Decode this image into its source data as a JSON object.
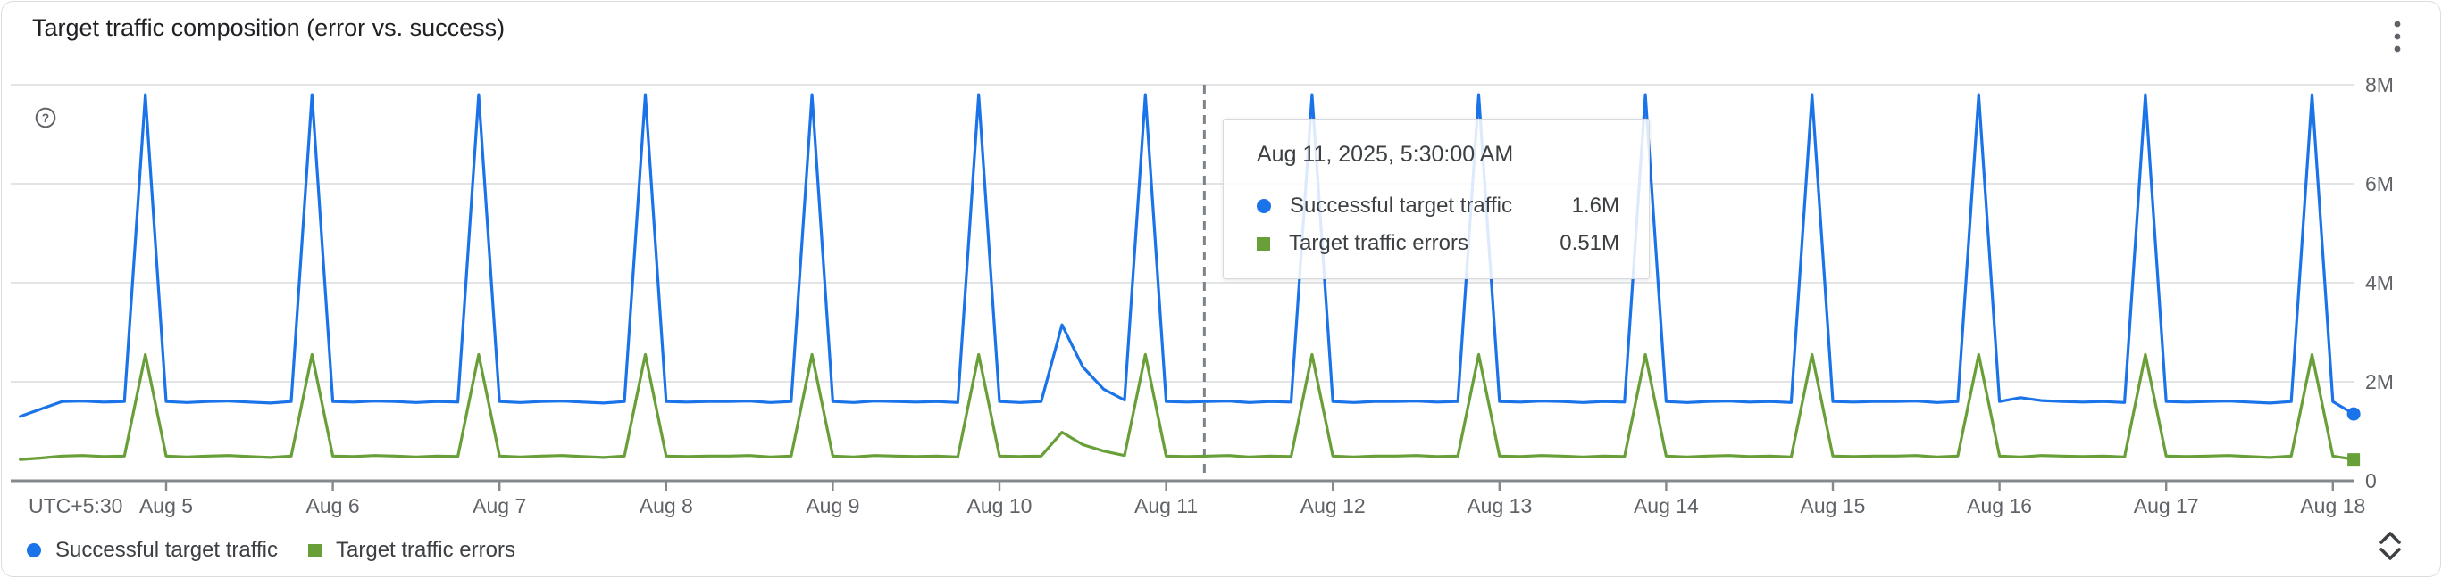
{
  "card": {
    "title": "Target traffic composition (error vs. success)"
  },
  "icons": {
    "menu": "kebab-vertical-icon",
    "help": "help-circle-icon",
    "expand": "unfold-more-icon"
  },
  "colors": {
    "success_series": "#1a73e8",
    "error_series": "#689f38",
    "grid": "#e4e4e6",
    "axis": "#85898e",
    "dashed_marker": "#7d838a",
    "axis_text": "#5f6368",
    "title_text": "#202124",
    "body_text": "#3c4043"
  },
  "tooltip": {
    "date": "Aug 11, 2025, 5:30:00 AM",
    "rows": [
      {
        "label": "Successful target traffic",
        "value": "1.6M",
        "marker": "circle"
      },
      {
        "label": "Target traffic errors",
        "value": "0.51M",
        "marker": "square"
      }
    ]
  },
  "legend": {
    "items": [
      {
        "label": "Successful target traffic",
        "marker": "circle"
      },
      {
        "label": "Target traffic errors",
        "marker": "square"
      }
    ]
  },
  "chart_data": {
    "type": "line",
    "title": "Target traffic composition (error vs. success)",
    "timezone_label": "UTC+5:30",
    "x_unit": "hours since Aug 4, 2025 00:00 (UTC+5:30)",
    "x_start_hour": 3,
    "x_step_hours": 3,
    "x_tick_hours": [
      24,
      48,
      72,
      96,
      120,
      144,
      168,
      192,
      216,
      240,
      264,
      288,
      312,
      336
    ],
    "x_tick_labels": [
      "Aug 5",
      "Aug 6",
      "Aug 7",
      "Aug 8",
      "Aug 9",
      "Aug 10",
      "Aug 11",
      "Aug 12",
      "Aug 13",
      "Aug 14",
      "Aug 15",
      "Aug 16",
      "Aug 17",
      "Aug 18"
    ],
    "y_ticks_millions": [
      0,
      2,
      4,
      6,
      8
    ],
    "y_tick_labels": [
      "0",
      "2M",
      "4M",
      "6M",
      "8M"
    ],
    "ylim_millions": [
      0,
      8
    ],
    "grid": true,
    "legend_position": "bottom",
    "selected_point": {
      "hour": 173.5,
      "date": "Aug 11, 2025, 5:30:00 AM",
      "success_millions": 1.6,
      "errors_millions": 0.51
    },
    "series": [
      {
        "name": "Successful target traffic",
        "color": "#1a73e8",
        "end_marker": "circle",
        "values_millions": [
          1.3,
          1.45,
          1.6,
          1.61,
          1.59,
          1.6,
          7.8,
          1.6,
          1.58,
          1.6,
          1.61,
          1.59,
          1.57,
          1.6,
          7.8,
          1.6,
          1.59,
          1.61,
          1.6,
          1.58,
          1.6,
          1.59,
          7.8,
          1.6,
          1.58,
          1.6,
          1.61,
          1.59,
          1.57,
          1.6,
          7.8,
          1.6,
          1.59,
          1.6,
          1.6,
          1.61,
          1.58,
          1.6,
          7.8,
          1.6,
          1.58,
          1.61,
          1.6,
          1.59,
          1.6,
          1.58,
          7.8,
          1.6,
          1.58,
          1.6,
          3.15,
          2.3,
          1.85,
          1.63,
          7.8,
          1.6,
          1.59,
          1.6,
          1.61,
          1.58,
          1.6,
          1.59,
          7.8,
          1.6,
          1.58,
          1.6,
          1.6,
          1.61,
          1.59,
          1.6,
          7.8,
          1.6,
          1.59,
          1.61,
          1.6,
          1.58,
          1.6,
          1.59,
          7.8,
          1.6,
          1.58,
          1.6,
          1.61,
          1.59,
          1.6,
          1.58,
          7.8,
          1.6,
          1.59,
          1.6,
          1.6,
          1.61,
          1.58,
          1.6,
          7.8,
          1.6,
          1.68,
          1.62,
          1.6,
          1.59,
          1.6,
          1.58,
          7.8,
          1.6,
          1.59,
          1.6,
          1.61,
          1.59,
          1.57,
          1.6,
          7.8,
          1.6,
          1.35
        ]
      },
      {
        "name": "Target traffic errors",
        "color": "#689f38",
        "end_marker": "square",
        "values_millions": [
          0.43,
          0.46,
          0.5,
          0.51,
          0.49,
          0.5,
          2.55,
          0.5,
          0.48,
          0.5,
          0.51,
          0.49,
          0.47,
          0.5,
          2.55,
          0.5,
          0.49,
          0.51,
          0.5,
          0.48,
          0.5,
          0.49,
          2.55,
          0.5,
          0.48,
          0.5,
          0.51,
          0.49,
          0.47,
          0.5,
          2.55,
          0.5,
          0.49,
          0.5,
          0.5,
          0.51,
          0.48,
          0.5,
          2.55,
          0.5,
          0.48,
          0.51,
          0.5,
          0.49,
          0.5,
          0.48,
          2.55,
          0.5,
          0.49,
          0.5,
          0.98,
          0.73,
          0.6,
          0.51,
          2.55,
          0.5,
          0.49,
          0.5,
          0.51,
          0.48,
          0.5,
          0.49,
          2.55,
          0.5,
          0.48,
          0.5,
          0.5,
          0.51,
          0.49,
          0.5,
          2.55,
          0.5,
          0.49,
          0.51,
          0.5,
          0.48,
          0.5,
          0.49,
          2.55,
          0.5,
          0.48,
          0.5,
          0.51,
          0.49,
          0.5,
          0.48,
          2.55,
          0.5,
          0.49,
          0.5,
          0.5,
          0.51,
          0.48,
          0.5,
          2.55,
          0.5,
          0.48,
          0.51,
          0.5,
          0.49,
          0.5,
          0.48,
          2.55,
          0.5,
          0.49,
          0.5,
          0.51,
          0.49,
          0.47,
          0.5,
          2.55,
          0.5,
          0.43
        ]
      }
    ]
  }
}
